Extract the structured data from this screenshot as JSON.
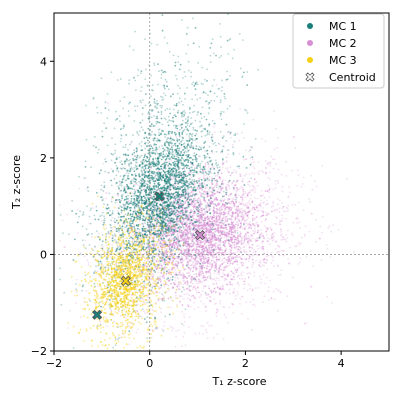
{
  "chart_data": {
    "type": "scatter",
    "title": "",
    "xlabel": "T₁ z-score",
    "ylabel": "T₂ z-score",
    "xlim": [
      -2,
      5
    ],
    "ylim": [
      -2,
      5
    ],
    "xticks": [
      -2,
      0,
      2,
      4
    ],
    "yticks": [
      -2,
      0,
      2,
      4
    ],
    "xtick_labels": [
      "−2",
      "0",
      "2",
      "4"
    ],
    "ytick_labels": [
      "−2",
      "0",
      "2",
      "4"
    ],
    "grid": false,
    "reference_lines": {
      "x": 0,
      "y": 0
    },
    "legend_position": "top-right",
    "series": [
      {
        "name": "MC 1",
        "color": "#1a7f7a",
        "center": [
          0.2,
          1.2
        ],
        "extent_note": "dense cloud from x≈-1.5 to 1.5, y≈-1.3 to 5",
        "samples": [
          [
            0.2,
            1.2
          ],
          [
            0.3,
            2.8
          ],
          [
            0.0,
            3.5
          ],
          [
            0.5,
            2.2
          ],
          [
            -0.3,
            1.6
          ],
          [
            -0.6,
            0.9
          ],
          [
            -0.9,
            0.2
          ],
          [
            -1.2,
            -0.6
          ],
          [
            0.8,
            2.6
          ],
          [
            0.4,
            4.3
          ],
          [
            -0.2,
            4.8
          ],
          [
            1.0,
            3.1
          ],
          [
            -0.4,
            2.4
          ],
          [
            0.6,
            1.4
          ],
          [
            -1.0,
            -0.9
          ],
          [
            0.1,
            0.6
          ]
        ]
      },
      {
        "name": "MC 2",
        "color": "#d78fd4",
        "center": [
          1.05,
          0.4
        ],
        "extent_note": "broad cloud from x≈-1 to 3.8, y≈-1.7 to 3",
        "samples": [
          [
            1.05,
            0.4
          ],
          [
            2.0,
            0.8
          ],
          [
            1.5,
            -0.3
          ],
          [
            0.5,
            0.2
          ],
          [
            2.8,
            0.6
          ],
          [
            1.2,
            1.5
          ],
          [
            0.8,
            -0.9
          ],
          [
            2.4,
            -0.5
          ],
          [
            3.3,
            1.1
          ],
          [
            1.8,
            2.3
          ],
          [
            0.2,
            -0.6
          ],
          [
            1.0,
            -1.3
          ],
          [
            2.6,
            1.7
          ],
          [
            0.4,
            1.0
          ],
          [
            3.5,
            0.0
          ],
          [
            1.4,
            2.7
          ]
        ]
      },
      {
        "name": "MC 3",
        "color": "#f5d116",
        "center": [
          -0.5,
          -0.55
        ],
        "extent_note": "compact cloud from x≈-1.2 to 0.2, y≈-1.2 to 1.5",
        "samples": [
          [
            -0.5,
            -0.55
          ],
          [
            -0.4,
            -0.2
          ],
          [
            -0.7,
            -0.8
          ],
          [
            -0.3,
            0.3
          ],
          [
            -0.6,
            0.8
          ],
          [
            -0.2,
            -0.9
          ],
          [
            -0.8,
            -0.3
          ],
          [
            -0.5,
            1.2
          ],
          [
            -0.1,
            0.1
          ],
          [
            -0.9,
            -1.0
          ],
          [
            -0.35,
            0.6
          ],
          [
            -0.65,
            0.1
          ]
        ]
      },
      {
        "name": "Centroid",
        "marker": "X",
        "points": [
          [
            0.2,
            1.2
          ],
          [
            1.05,
            0.4
          ],
          [
            -0.5,
            -0.55
          ],
          [
            -1.1,
            -1.25
          ]
        ],
        "colors": [
          "#1a7f7a",
          "#d78fd4",
          "#f5d116",
          "#1a7f7a"
        ]
      }
    ]
  }
}
